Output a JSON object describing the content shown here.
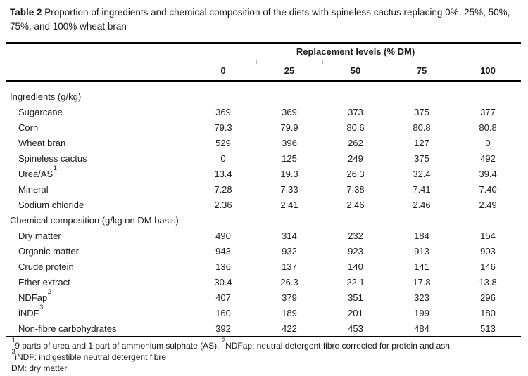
{
  "title": {
    "label": "Table 2",
    "text": " Proportion of ingredients and chemical composition of the diets with spineless cactus replacing 0%, 25%, 50%, 75%, and 100% wheat bran"
  },
  "table": {
    "spanner": "Replacement levels (% DM)",
    "columns": [
      "0",
      "25",
      "50",
      "75",
      "100"
    ],
    "sections": [
      {
        "heading": "Ingredients (g/kg)",
        "rows": [
          {
            "label": "Sugarcane",
            "sup": "",
            "values": [
              "369",
              "369",
              "373",
              "375",
              "377"
            ]
          },
          {
            "label": "Corn",
            "sup": "",
            "values": [
              "79.3",
              "79.9",
              "80.6",
              "80.8",
              "80.8"
            ]
          },
          {
            "label": "Wheat bran",
            "sup": "",
            "values": [
              "529",
              "396",
              "262",
              "127",
              "0"
            ]
          },
          {
            "label": "Spineless cactus",
            "sup": "",
            "values": [
              "0",
              "125",
              "249",
              "375",
              "492"
            ]
          },
          {
            "label": "Urea/AS",
            "sup": "1",
            "values": [
              "13.4",
              "19.3",
              "26.3",
              "32.4",
              "39.4"
            ]
          },
          {
            "label": "Mineral",
            "sup": "",
            "values": [
              "7.28",
              "7.33",
              "7.38",
              "7.41",
              "7.40"
            ]
          },
          {
            "label": "Sodium chloride",
            "sup": "",
            "values": [
              "2.36",
              "2.41",
              "2.46",
              "2.46",
              "2.49"
            ]
          }
        ]
      },
      {
        "heading": "Chemical composition (g/kg on DM basis)",
        "rows": [
          {
            "label": "Dry matter",
            "sup": "",
            "values": [
              "490",
              "314",
              "232",
              "184",
              "154"
            ]
          },
          {
            "label": "Organic matter",
            "sup": "",
            "values": [
              "943",
              "932",
              "923",
              "913",
              "903"
            ]
          },
          {
            "label": "Crude protein",
            "sup": "",
            "values": [
              "136",
              "137",
              "140",
              "141",
              "146"
            ]
          },
          {
            "label": "Ether extract",
            "sup": "",
            "values": [
              "30.4",
              "26.3",
              "22.1",
              "17.8",
              "13.8"
            ]
          },
          {
            "label": "NDFap",
            "sup": "2",
            "values": [
              "407",
              "379",
              "351",
              "323",
              "296"
            ]
          },
          {
            "label": "iNDF",
            "sup": "3",
            "values": [
              "160",
              "189",
              "201",
              "199",
              "180"
            ]
          },
          {
            "label": "Non-fibre carbohydrates",
            "sup": "",
            "values": [
              "392",
              "422",
              "453",
              "484",
              "513"
            ]
          }
        ]
      }
    ]
  },
  "footnotes": [
    [
      [
        "sup",
        "1"
      ],
      [
        "t",
        "9 parts of urea and 1 part of ammonium sulphate (AS). "
      ],
      [
        "sup",
        "2"
      ],
      [
        "t",
        "NDFap: neutral detergent fibre corrected for protein and ash."
      ]
    ],
    [
      [
        "sup",
        "3"
      ],
      [
        "t",
        "iNDF: indigestible neutral detergent fibre"
      ]
    ],
    [
      [
        "t",
        "DM: dry matter"
      ]
    ]
  ]
}
